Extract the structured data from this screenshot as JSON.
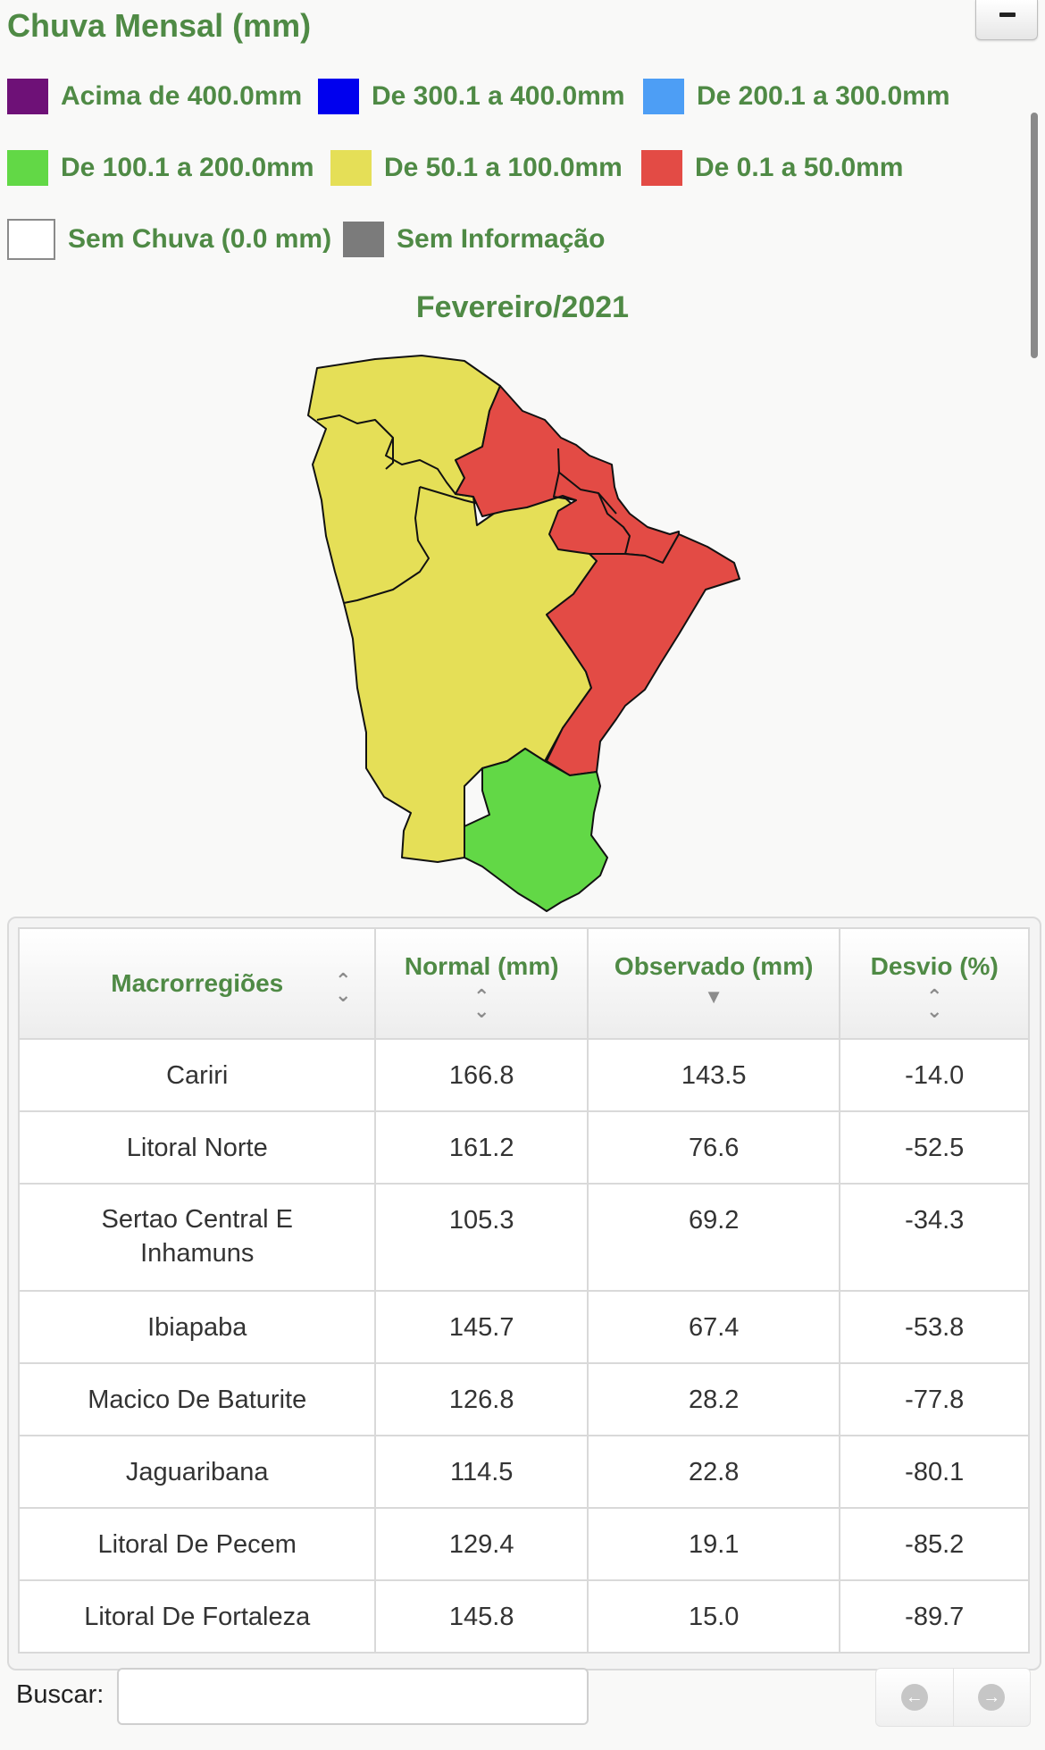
{
  "panel": {
    "title": "Chuva Mensal (mm)"
  },
  "legend": [
    {
      "label": "Acima de 400.0mm",
      "color": "#6e1177"
    },
    {
      "label": "De 300.1 a 400.0mm",
      "color": "#0000ee"
    },
    {
      "label": "De 200.1 a 300.0mm",
      "color": "#4d9ef5"
    },
    {
      "label": "De 100.1 a 200.0mm",
      "color": "#62d846"
    },
    {
      "label": "De 50.1 a 100.0mm",
      "color": "#e5df57"
    },
    {
      "label": "De 0.1 a 50.0mm",
      "color": "#e34b45"
    },
    {
      "label": "Sem Chuva (0.0 mm)",
      "color": "#ffffff"
    },
    {
      "label": "Sem Informação",
      "color": "#7b7b7b"
    }
  ],
  "map": {
    "title": "Fevereiro/2021",
    "colors": {
      "yellow": "#e5df57",
      "red": "#e34b45",
      "green": "#62d846"
    }
  },
  "table": {
    "headers": [
      "Macrorregiões",
      "Normal (mm)",
      "Observado (mm)",
      "Desvio (%)"
    ],
    "rows": [
      [
        "Cariri",
        "166.8",
        "143.5",
        "-14.0"
      ],
      [
        "Litoral Norte",
        "161.2",
        "76.6",
        "-52.5"
      ],
      [
        "Sertao Central E Inhamuns",
        "105.3",
        "69.2",
        "-34.3"
      ],
      [
        "Ibiapaba",
        "145.7",
        "67.4",
        "-53.8"
      ],
      [
        "Macico De Baturite",
        "126.8",
        "28.2",
        "-77.8"
      ],
      [
        "Jaguaribana",
        "114.5",
        "22.8",
        "-80.1"
      ],
      [
        "Litoral De Pecem",
        "129.4",
        "19.1",
        "-85.2"
      ],
      [
        "Litoral De Fortaleza",
        "145.8",
        "15.0",
        "-89.7"
      ]
    ]
  },
  "search": {
    "label": "Buscar:",
    "value": ""
  },
  "icons": {
    "collapse": "minus-icon",
    "prev": "arrow-left-circle-icon",
    "next": "arrow-right-circle-icon",
    "sort": "sort-arrows-icon"
  }
}
